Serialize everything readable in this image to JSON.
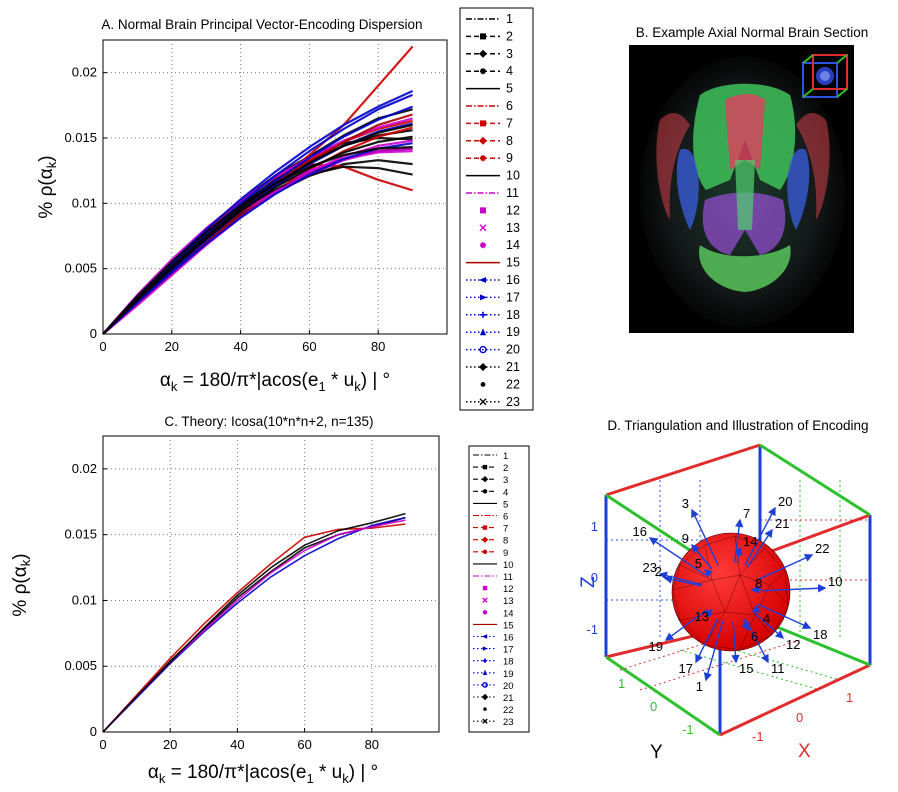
{
  "panels": {
    "A": {
      "title": "A.  Normal  Brain Principal Vector-Encoding Dispersion"
    },
    "B": {
      "title": "B.  Example Axial Normal Brain Section"
    },
    "C": {
      "title": "C.  Theory: Icosa(10*n*n+2, n=135)"
    },
    "D": {
      "title": "D.  Triangulation and Illustration of Encoding",
      "axis_labels": {
        "x": "X",
        "y": "Y",
        "z": "Z"
      },
      "x_ticks": [
        "-1",
        "0",
        "1"
      ],
      "y_ticks": [
        "1",
        "0",
        "-1"
      ],
      "z_ticks": [
        "1",
        "0",
        "-1"
      ],
      "vector_labels": [
        "3",
        "7",
        "20",
        "21",
        "22",
        "10",
        "18",
        "12",
        "11",
        "15",
        "17",
        "19",
        "23",
        "9",
        "16",
        "1",
        "8",
        "2",
        "14",
        "13",
        "4",
        "5",
        "6"
      ]
    }
  },
  "axis_text": {
    "xlabel_main": "α",
    "xlabel_sub": "k",
    "xlabel_rest": " = 180/π*|acos(e",
    "xlabel_sub2": "1",
    "xlabel_mid": " * u",
    "xlabel_sub3": "k",
    "xlabel_end": ") | °",
    "ylabel_main": "% ρ(α",
    "ylabel_sub": "k",
    "ylabel_end": ")"
  },
  "legend": {
    "entries": [
      {
        "label": "1",
        "color": "#000000",
        "style": "dashdot",
        "marker": "none"
      },
      {
        "label": "2",
        "color": "#000000",
        "style": "dashed",
        "marker": "square"
      },
      {
        "label": "3",
        "color": "#000000",
        "style": "dashed",
        "marker": "diamond"
      },
      {
        "label": "4",
        "color": "#000000",
        "style": "dashed",
        "marker": "star"
      },
      {
        "label": "5",
        "color": "#000000",
        "style": "solid",
        "marker": "none"
      },
      {
        "label": "6",
        "color": "#cc0000",
        "style": "dashdot",
        "marker": "none"
      },
      {
        "label": "7",
        "color": "#cc0000",
        "style": "dashed",
        "marker": "square"
      },
      {
        "label": "8",
        "color": "#cc0000",
        "style": "dashed",
        "marker": "diamond"
      },
      {
        "label": "9",
        "color": "#cc0000",
        "style": "dashed",
        "marker": "star"
      },
      {
        "label": "10",
        "color": "#000000",
        "style": "solid",
        "marker": "none"
      },
      {
        "label": "11",
        "color": "#cc00cc",
        "style": "dashdot",
        "marker": "none"
      },
      {
        "label": "12",
        "color": "#cc00cc",
        "style": "none",
        "marker": "square"
      },
      {
        "label": "13",
        "color": "#cc00cc",
        "style": "none",
        "marker": "x"
      },
      {
        "label": "14",
        "color": "#cc00cc",
        "style": "none",
        "marker": "star"
      },
      {
        "label": "15",
        "color": "#aa0000",
        "style": "solid",
        "marker": "none"
      },
      {
        "label": "16",
        "color": "#0000cc",
        "style": "dotted",
        "marker": "triangle-left"
      },
      {
        "label": "17",
        "color": "#0000cc",
        "style": "dotted",
        "marker": "triangle-right"
      },
      {
        "label": "18",
        "color": "#0000cc",
        "style": "dotted",
        "marker": "plus"
      },
      {
        "label": "19",
        "color": "#0000cc",
        "style": "dotted",
        "marker": "triangle-up"
      },
      {
        "label": "20",
        "color": "#0000cc",
        "style": "dotted",
        "marker": "circle"
      },
      {
        "label": "21",
        "color": "#000000",
        "style": "dotted",
        "marker": "diamond"
      },
      {
        "label": "22",
        "color": "#000000",
        "style": "none",
        "marker": "dot"
      },
      {
        "label": "23",
        "color": "#000000",
        "style": "dotted",
        "marker": "x"
      }
    ]
  },
  "chart_data": [
    {
      "id": "A",
      "type": "line",
      "title": "A.  Normal  Brain Principal Vector-Encoding Dispersion",
      "xlim": [
        0,
        100
      ],
      "ylim": [
        0,
        0.0225
      ],
      "xticks": [
        0,
        20,
        40,
        60,
        80
      ],
      "yticks": [
        0,
        0.005,
        0.01,
        0.015,
        0.02
      ],
      "ytick_labels": [
        "0",
        "0.005",
        "0.01",
        "0.015",
        "0.02"
      ],
      "grid": true,
      "legend_position": "right",
      "series": [
        {
          "name": "1",
          "color": "#000000",
          "x": [
            0,
            10,
            20,
            30,
            40,
            50,
            60,
            70,
            80,
            90
          ],
          "y": [
            0,
            0.0026,
            0.005,
            0.0072,
            0.0092,
            0.011,
            0.0124,
            0.0134,
            0.014,
            0.0142
          ]
        },
        {
          "name": "2",
          "color": "#000000",
          "x": [
            0,
            10,
            20,
            30,
            40,
            50,
            60,
            70,
            80,
            90
          ],
          "y": [
            0,
            0.0028,
            0.0054,
            0.0078,
            0.0099,
            0.0118,
            0.0133,
            0.0144,
            0.0152,
            0.0156
          ]
        },
        {
          "name": "3",
          "color": "#000000",
          "x": [
            0,
            10,
            20,
            30,
            40,
            50,
            60,
            70,
            80,
            90
          ],
          "y": [
            0,
            0.0027,
            0.0052,
            0.0076,
            0.0098,
            0.0117,
            0.0136,
            0.0152,
            0.0165,
            0.0172
          ]
        },
        {
          "name": "4",
          "color": "#000000",
          "x": [
            0,
            10,
            20,
            30,
            40,
            50,
            60,
            70,
            80,
            90
          ],
          "y": [
            0,
            0.0025,
            0.0049,
            0.0071,
            0.0091,
            0.0108,
            0.0121,
            0.013,
            0.0133,
            0.013
          ]
        },
        {
          "name": "5",
          "color": "#000000",
          "x": [
            0,
            10,
            20,
            30,
            40,
            50,
            60,
            70,
            80,
            90
          ],
          "y": [
            0,
            0.0029,
            0.0056,
            0.008,
            0.0102,
            0.0121,
            0.0136,
            0.0146,
            0.015,
            0.0149
          ]
        },
        {
          "name": "6",
          "color": "#cc0000",
          "x": [
            0,
            10,
            20,
            30,
            40,
            50,
            60,
            70,
            80,
            90
          ],
          "y": [
            0,
            0.0024,
            0.0047,
            0.0069,
            0.009,
            0.0109,
            0.0126,
            0.014,
            0.0151,
            0.0158
          ]
        },
        {
          "name": "7",
          "color": "#cc0000",
          "x": [
            0,
            10,
            20,
            30,
            40,
            50,
            60,
            70,
            80,
            90
          ],
          "y": [
            0,
            0.0023,
            0.0046,
            0.007,
            0.0093,
            0.0115,
            0.0137,
            0.016,
            0.019,
            0.022
          ]
        },
        {
          "name": "8",
          "color": "#cc0000",
          "x": [
            0,
            10,
            20,
            30,
            40,
            50,
            60,
            70,
            80,
            90
          ],
          "y": [
            0,
            0.0026,
            0.0053,
            0.0079,
            0.0102,
            0.012,
            0.013,
            0.0128,
            0.0118,
            0.011
          ]
        },
        {
          "name": "9",
          "color": "#cc0000",
          "x": [
            0,
            10,
            20,
            30,
            40,
            50,
            60,
            70,
            80,
            90
          ],
          "y": [
            0,
            0.0025,
            0.005,
            0.0074,
            0.0096,
            0.0116,
            0.0133,
            0.0147,
            0.0157,
            0.0163
          ]
        },
        {
          "name": "10",
          "color": "#000000",
          "x": [
            0,
            10,
            20,
            30,
            40,
            50,
            60,
            70,
            80,
            90
          ],
          "y": [
            0,
            0.0028,
            0.0053,
            0.0075,
            0.0094,
            0.011,
            0.0122,
            0.0128,
            0.0127,
            0.0122
          ]
        },
        {
          "name": "11",
          "color": "#cc00cc",
          "x": [
            0,
            10,
            20,
            30,
            40,
            50,
            60,
            70,
            80,
            90
          ],
          "y": [
            0,
            0.0022,
            0.0045,
            0.0068,
            0.0089,
            0.0108,
            0.0124,
            0.0136,
            0.0144,
            0.0148
          ]
        },
        {
          "name": "12",
          "color": "#cc00cc",
          "x": [
            0,
            10,
            20,
            30,
            40,
            50,
            60,
            70,
            80,
            90
          ],
          "y": [
            0,
            0.0027,
            0.0052,
            0.0074,
            0.0093,
            0.0109,
            0.0122,
            0.0133,
            0.014,
            0.0142
          ]
        },
        {
          "name": "13",
          "color": "#cc00cc",
          "x": [
            0,
            10,
            20,
            30,
            40,
            50,
            60,
            70,
            80,
            90
          ],
          "y": [
            0,
            0.003,
            0.0057,
            0.0081,
            0.0102,
            0.012,
            0.0135,
            0.0148,
            0.0158,
            0.0165
          ]
        },
        {
          "name": "14",
          "color": "#cc00cc",
          "x": [
            0,
            10,
            20,
            30,
            40,
            50,
            60,
            70,
            80,
            90
          ],
          "y": [
            0,
            0.0028,
            0.0054,
            0.0077,
            0.0097,
            0.0113,
            0.0125,
            0.0134,
            0.0139,
            0.014
          ]
        },
        {
          "name": "15",
          "color": "#aa0000",
          "x": [
            0,
            10,
            20,
            30,
            40,
            50,
            60,
            70,
            80,
            90
          ],
          "y": [
            0,
            0.0024,
            0.0048,
            0.0071,
            0.0093,
            0.0113,
            0.0131,
            0.0147,
            0.016,
            0.0168
          ]
        },
        {
          "name": "16",
          "color": "#0000cc",
          "x": [
            0,
            10,
            20,
            30,
            40,
            50,
            60,
            70,
            80,
            90
          ],
          "y": [
            0,
            0.0026,
            0.0051,
            0.0075,
            0.0097,
            0.0117,
            0.0135,
            0.0151,
            0.0164,
            0.0174
          ]
        },
        {
          "name": "17",
          "color": "#0000cc",
          "x": [
            0,
            10,
            20,
            30,
            40,
            50,
            60,
            70,
            80,
            90
          ],
          "y": [
            0,
            0.0027,
            0.0053,
            0.0077,
            0.01,
            0.0121,
            0.014,
            0.0157,
            0.0172,
            0.0183
          ]
        },
        {
          "name": "18",
          "color": "#0000cc",
          "x": [
            0,
            10,
            20,
            30,
            40,
            50,
            60,
            70,
            80,
            90
          ],
          "y": [
            0,
            0.0025,
            0.0049,
            0.0072,
            0.0094,
            0.0113,
            0.013,
            0.0144,
            0.0155,
            0.0161
          ]
        },
        {
          "name": "19",
          "color": "#0000cc",
          "x": [
            0,
            10,
            20,
            30,
            40,
            50,
            60,
            70,
            80,
            90
          ],
          "y": [
            0,
            0.0028,
            0.0055,
            0.008,
            0.0103,
            0.0124,
            0.0143,
            0.016,
            0.0174,
            0.0186
          ]
        },
        {
          "name": "20",
          "color": "#0000cc",
          "x": [
            0,
            10,
            20,
            30,
            40,
            50,
            60,
            70,
            80,
            90
          ],
          "y": [
            0,
            0.0024,
            0.0047,
            0.0069,
            0.0089,
            0.0107,
            0.0122,
            0.0134,
            0.0142,
            0.0146
          ]
        },
        {
          "name": "21",
          "color": "#000000",
          "x": [
            0,
            10,
            20,
            30,
            40,
            50,
            60,
            70,
            80,
            90
          ],
          "y": [
            0,
            0.0027,
            0.0052,
            0.0075,
            0.0096,
            0.0115,
            0.0131,
            0.0144,
            0.0154,
            0.016
          ]
        },
        {
          "name": "22",
          "color": "#000000",
          "x": [
            0,
            10,
            20,
            30,
            40,
            50,
            60,
            70,
            80,
            90
          ],
          "y": [
            0,
            0.0029,
            0.0055,
            0.0078,
            0.0098,
            0.0115,
            0.0128,
            0.0137,
            0.0142,
            0.0143
          ]
        },
        {
          "name": "23",
          "color": "#000000",
          "x": [
            0,
            10,
            20,
            30,
            40,
            50,
            60,
            70,
            80,
            90
          ],
          "y": [
            0,
            0.0026,
            0.005,
            0.0073,
            0.0094,
            0.0112,
            0.0127,
            0.0139,
            0.0147,
            0.0151
          ]
        }
      ]
    },
    {
      "id": "C",
      "type": "line",
      "title": "C.  Theory: Icosa(10*n*n+2, n=135)",
      "xlim": [
        0,
        100
      ],
      "ylim": [
        0,
        0.0225
      ],
      "xticks": [
        0,
        20,
        40,
        60,
        80
      ],
      "yticks": [
        0,
        0.005,
        0.01,
        0.015,
        0.02
      ],
      "ytick_labels": [
        "0",
        "0.005",
        "0.01",
        "0.015",
        "0.02"
      ],
      "grid": true,
      "legend_position": "right",
      "series": [
        {
          "name": "1",
          "color": "#000000",
          "x": [
            0,
            10,
            20,
            30,
            40,
            50,
            60,
            70,
            80,
            90
          ],
          "y": [
            0,
            0.0027,
            0.0054,
            0.0078,
            0.0102,
            0.0122,
            0.014,
            0.015,
            0.0156,
            0.0163
          ]
        },
        {
          "name": "6",
          "color": "#cc0000",
          "x": [
            0,
            10,
            20,
            30,
            40,
            50,
            60,
            70,
            80,
            90
          ],
          "y": [
            0,
            0.0028,
            0.0056,
            0.0082,
            0.0106,
            0.0128,
            0.0148,
            0.0154,
            0.0155,
            0.0158
          ]
        },
        {
          "name": "16",
          "color": "#0000cc",
          "x": [
            0,
            10,
            20,
            30,
            40,
            50,
            60,
            70,
            80,
            90
          ],
          "y": [
            0,
            0.0026,
            0.0052,
            0.0076,
            0.0098,
            0.0118,
            0.0134,
            0.0147,
            0.0157,
            0.0163
          ]
        },
        {
          "name": "11",
          "color": "#cc00cc",
          "x": [
            0,
            10,
            20,
            30,
            40,
            50,
            60,
            70,
            80,
            90
          ],
          "y": [
            0,
            0.0027,
            0.0053,
            0.0077,
            0.01,
            0.0121,
            0.0138,
            0.015,
            0.0156,
            0.0161
          ]
        },
        {
          "name": "21",
          "color": "#000000",
          "x": [
            0,
            10,
            20,
            30,
            40,
            50,
            60,
            70,
            80,
            90
          ],
          "y": [
            0,
            0.0027,
            0.0053,
            0.0079,
            0.0104,
            0.0125,
            0.0142,
            0.0153,
            0.0159,
            0.0166
          ]
        }
      ]
    }
  ]
}
